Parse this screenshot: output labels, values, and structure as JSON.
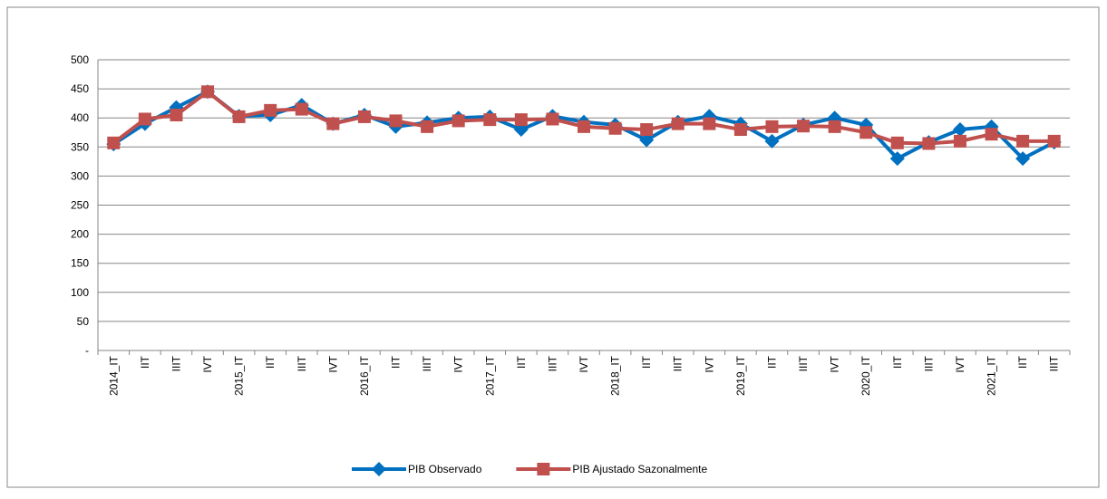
{
  "chart_data": {
    "type": "line",
    "categories": [
      "2014_IT",
      "IIT",
      "IIIT",
      "IVT",
      "2015_IT",
      "IIT",
      "IIIT",
      "IVT",
      "2016_IT",
      "IIT",
      "IIIT",
      "IVT",
      "2017_IT",
      "IIT",
      "IIIT",
      "IVT",
      "2018_IT",
      "IIT",
      "IIIT",
      "IVT",
      "2019_IT",
      "IIT",
      "IIIT",
      "IVT",
      "2020_IT",
      "IIT",
      "IIIT",
      "IVT",
      "2021_IT",
      "IIT",
      "IIIT"
    ],
    "series": [
      {
        "name": "PIB Observado",
        "color": "#0070c0",
        "marker": "diamond",
        "values": [
          355,
          390,
          418,
          445,
          403,
          405,
          422,
          390,
          405,
          385,
          392,
          400,
          402,
          380,
          403,
          393,
          388,
          362,
          393,
          403,
          390,
          360,
          388,
          400,
          388,
          330,
          358,
          380,
          385,
          330,
          358
        ]
      },
      {
        "name": "PIB Ajustado Sazonalmente",
        "color": "#c0504d",
        "marker": "square",
        "values": [
          357,
          398,
          405,
          445,
          402,
          413,
          415,
          390,
          402,
          395,
          385,
          395,
          397,
          397,
          398,
          385,
          382,
          380,
          390,
          390,
          380,
          385,
          386,
          385,
          375,
          357,
          356,
          360,
          372,
          360,
          360
        ]
      }
    ],
    "ylim": [
      0,
      500
    ],
    "yticks": [
      {
        "value": 0,
        "label": "-"
      },
      50,
      100,
      150,
      200,
      250,
      300,
      350,
      400,
      450,
      500
    ],
    "grid": true,
    "legend": "bottom"
  }
}
